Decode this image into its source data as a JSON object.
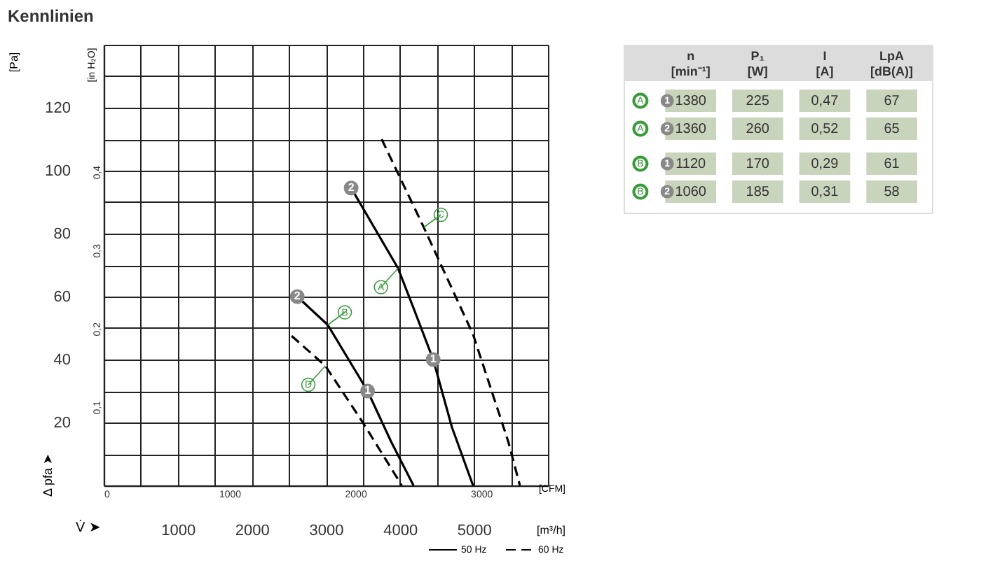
{
  "chart_data": [
    {
      "type": "line",
      "title": "Kennlinien",
      "xlabel": "[m³/h]",
      "ylabel": "[Pa]",
      "x2label": "[CFM]",
      "y2label": "[in H₂O]",
      "xlim": [
        0,
        6000
      ],
      "xticks": [
        {
          "value": 0,
          "label": null
        },
        {
          "value": 500,
          "label": null
        },
        1000,
        {
          "value": 1500,
          "label": null
        },
        2000,
        {
          "value": 2500,
          "label": null
        },
        3000,
        {
          "value": 3500,
          "label": null
        },
        4000,
        {
          "value": 4500,
          "label": null
        },
        5000,
        {
          "value": 5500,
          "label": null
        },
        {
          "value": 6000,
          "label": null
        }
      ],
      "ylim": [
        0,
        140
      ],
      "yticks": [
        {
          "value": 0,
          "label": null
        },
        {
          "value": 10,
          "label": null
        },
        20,
        {
          "value": 30,
          "label": null
        },
        40,
        {
          "value": 50,
          "label": null
        },
        60,
        {
          "value": 70,
          "label": null
        },
        80,
        {
          "value": 90,
          "label": null
        },
        100,
        {
          "value": 110,
          "label": null
        },
        120,
        {
          "value": 130,
          "label": null
        },
        {
          "value": 140,
          "label": null
        }
      ],
      "x2lim": [
        0,
        3531
      ],
      "x2ticks": [
        0,
        1000,
        2000,
        3000
      ],
      "y2lim": [
        0,
        0.562
      ],
      "y2ticks": [
        {
          "value": 0.1,
          "label": "0,1"
        },
        {
          "value": 0.2,
          "label": "0,2"
        },
        {
          "value": 0.3,
          "label": "0,3"
        },
        {
          "value": 0.4,
          "label": "0,4"
        }
      ],
      "grid": true,
      "legend": "bottom right",
      "series": [
        {
          "name": "A",
          "color": "#000000",
          "line_style": "solid",
          "x": [
            3342,
            3975,
            4197,
            4450,
            4703,
            4988
          ],
          "values": [
            94.5,
            69,
            55.6,
            40,
            18.5,
            0
          ]
        },
        {
          "name": "B",
          "color": "#000000",
          "line_style": "solid",
          "x": [
            2614,
            3026,
            3564,
            3880,
            4184
          ],
          "values": [
            60,
            51,
            30,
            14,
            0
          ]
        },
        {
          "name": "C",
          "color": "#000000",
          "line_style": "dashed",
          "x": [
            3754,
            4323,
            4988,
            5463,
            5621
          ],
          "values": [
            110,
            82,
            48,
            14,
            0
          ]
        },
        {
          "name": "D",
          "color": "#000000",
          "line_style": "dashed",
          "x": [
            2538,
            2994,
            3500,
            4026
          ],
          "values": [
            47.5,
            38,
            20,
            0
          ]
        }
      ],
      "annotations": [
        {
          "text": "2",
          "x": 3342,
          "y": 94.5
        },
        {
          "text": "1",
          "x": 4450,
          "y": 40
        },
        {
          "text": "2",
          "x": 2614,
          "y": 60
        },
        {
          "text": "1",
          "x": 3564,
          "y": 30
        },
        "Δ pfa ➤",
        "V̇ ➤",
        "50 Hz",
        "60 Hz"
      ]
    },
    {
      "type": "other",
      "categories": [
        "n\n[min⁻¹]",
        "P₁\n[W]",
        "I\n[A]",
        "LpA\n[dB(A)]"
      ],
      "y_categories": [
        "A 1",
        "A 2",
        "B 1",
        "B 2"
      ],
      "cell_labels": [
        [
          "1380",
          "225",
          "0,47",
          "67"
        ],
        [
          "1360",
          "260",
          "0,52",
          "65"
        ],
        [
          "1120",
          "170",
          "0,29",
          "61"
        ],
        [
          "1060",
          "185",
          "0,31",
          "58"
        ]
      ]
    }
  ]
}
